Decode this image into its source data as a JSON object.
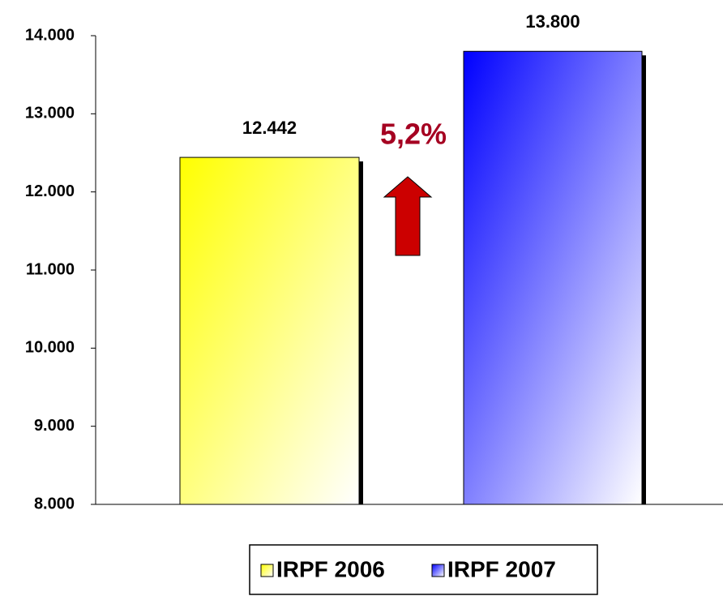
{
  "chart_data": {
    "type": "bar",
    "categories": [
      null
    ],
    "series": [
      {
        "name": "IRPF 2006",
        "color": "#ffff00",
        "values": [
          12442
        ],
        "value_labels": [
          "12.442"
        ]
      },
      {
        "name": "IRPF 2007",
        "color": "#0000ff",
        "values": [
          13800
        ],
        "value_labels": [
          "13.800"
        ]
      }
    ],
    "ylim": [
      8000,
      14000
    ],
    "yticks": [
      {
        "value": 8000,
        "label": "8.000"
      },
      {
        "value": 9000,
        "label": "9.000"
      },
      {
        "value": 10000,
        "label": "10.000"
      },
      {
        "value": 11000,
        "label": "11.000"
      },
      {
        "value": 12000,
        "label": "12.000"
      },
      {
        "value": 13000,
        "label": "13.000"
      },
      {
        "value": 14000,
        "label": "14.000"
      }
    ],
    "grid": false,
    "legend": "bottom",
    "annotations": [
      {
        "text": "5,2%",
        "color": "#a50021"
      }
    ]
  }
}
